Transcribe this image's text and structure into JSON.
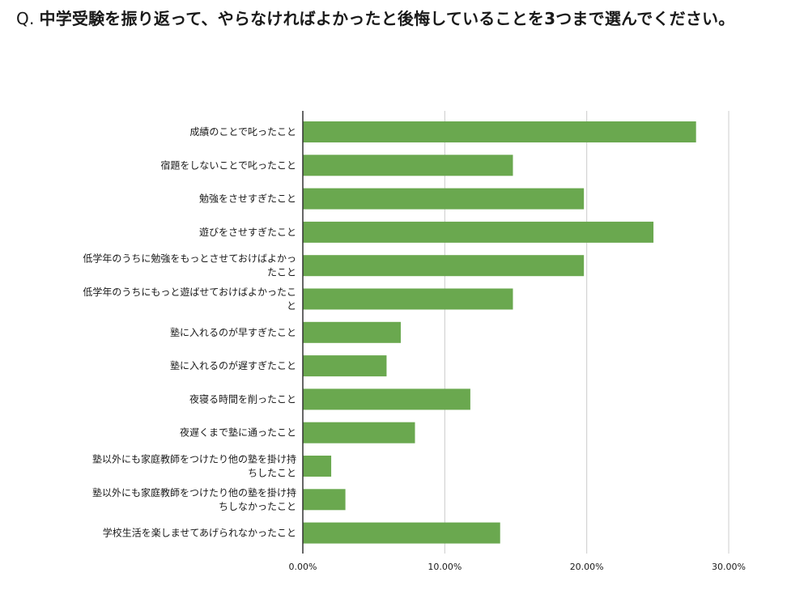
{
  "question": {
    "prefix": "Q.",
    "text": "中学受験を振り返って、やらなければよかったと後悔していることを3つまで選んでください。"
  },
  "chart_data": {
    "type": "bar",
    "orientation": "horizontal",
    "categories": [
      [
        "成績のことで叱ったこと"
      ],
      [
        "宿題をしないことで叱ったこと"
      ],
      [
        "勉強をさせすぎたこと"
      ],
      [
        "遊びをさせすぎたこと"
      ],
      [
        "低学年のうちに勉強をもっとさせておけばよかっ",
        "たこと"
      ],
      [
        "低学年のうちにもっと遊ばせておけばよかったこ",
        "と"
      ],
      [
        "塾に入れるのが早すぎたこと"
      ],
      [
        "塾に入れるのが遅すぎたこと"
      ],
      [
        "夜寝る時間を削ったこと"
      ],
      [
        "夜遅くまで塾に通ったこと"
      ],
      [
        "塾以外にも家庭教師をつけたり他の塾を掛け持",
        "ちしたこと"
      ],
      [
        "塾以外にも家庭教師をつけたり他の塾を掛け持",
        "ちしなかったこと"
      ],
      [
        "学校生活を楽しませてあげられなかったこと"
      ]
    ],
    "values": [
      27.7,
      14.8,
      19.8,
      24.7,
      19.8,
      14.8,
      6.9,
      5.9,
      11.8,
      7.9,
      2.0,
      3.0,
      13.9
    ],
    "xlim": [
      0,
      30
    ],
    "ticks": [
      0,
      10,
      20,
      30
    ],
    "tick_labels": [
      "0.00%",
      "10.00%",
      "20.00%",
      "30.00%"
    ],
    "grid": true,
    "legend": "none",
    "bar_color": "#6aa84f",
    "grid_color": "#cccccc",
    "axis_color": "#333333"
  }
}
